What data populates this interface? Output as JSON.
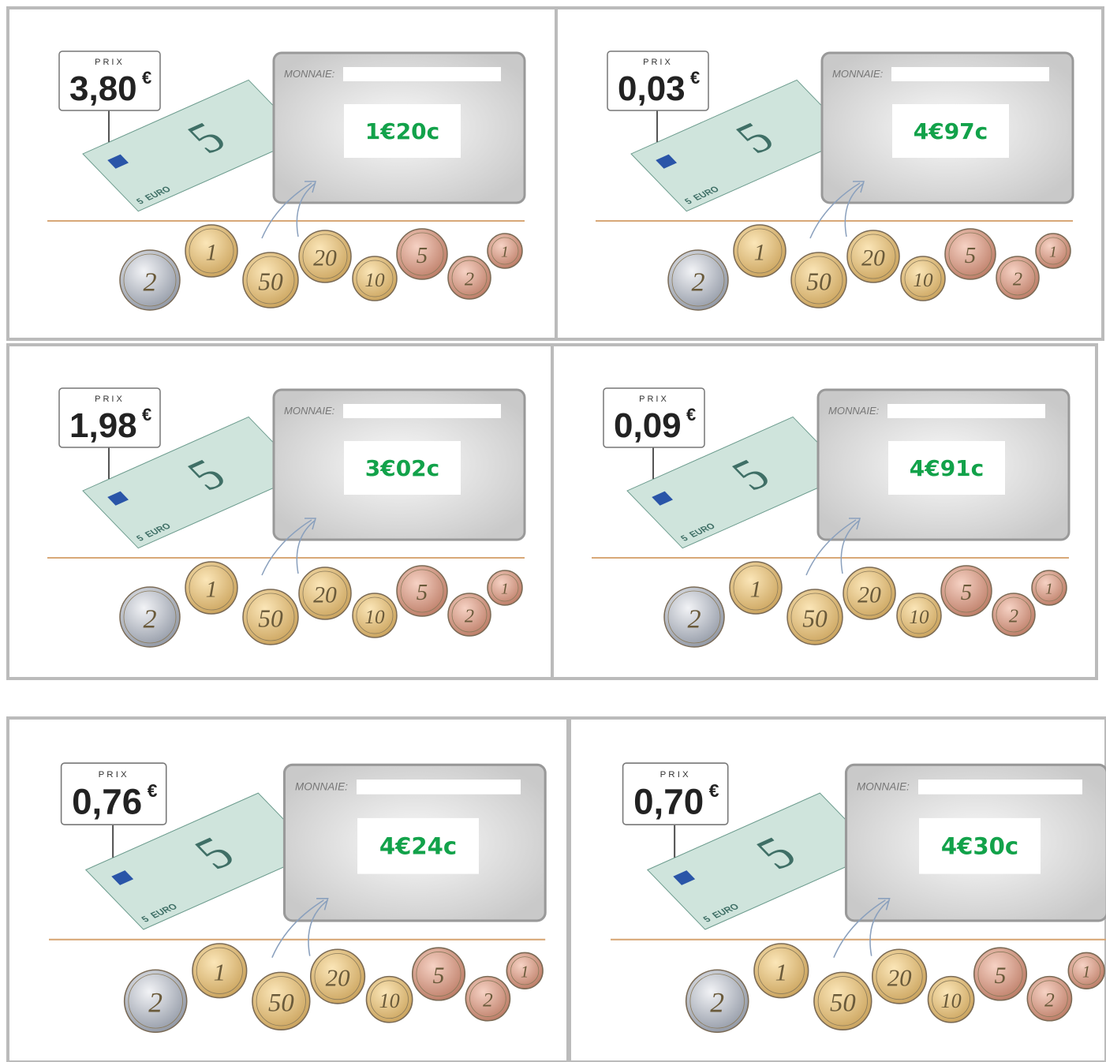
{
  "prix_label": "PRIX",
  "change_label": "MONNAIE:",
  "currency": "€",
  "note": {
    "value": "5",
    "word": "EURO"
  },
  "coins": [
    "2",
    "1",
    "50",
    "20",
    "10",
    "5",
    "2",
    "1"
  ],
  "panels": [
    {
      "price": "3,80",
      "answer": "1€20c"
    },
    {
      "price": "0,03",
      "answer": "4€97c"
    },
    {
      "price": "1,98",
      "answer": "3€02c"
    },
    {
      "price": "0,09",
      "answer": "4€91c"
    },
    {
      "price": "0,76",
      "answer": "4€24c"
    },
    {
      "price": "0,70",
      "answer": "4€30c"
    }
  ]
}
